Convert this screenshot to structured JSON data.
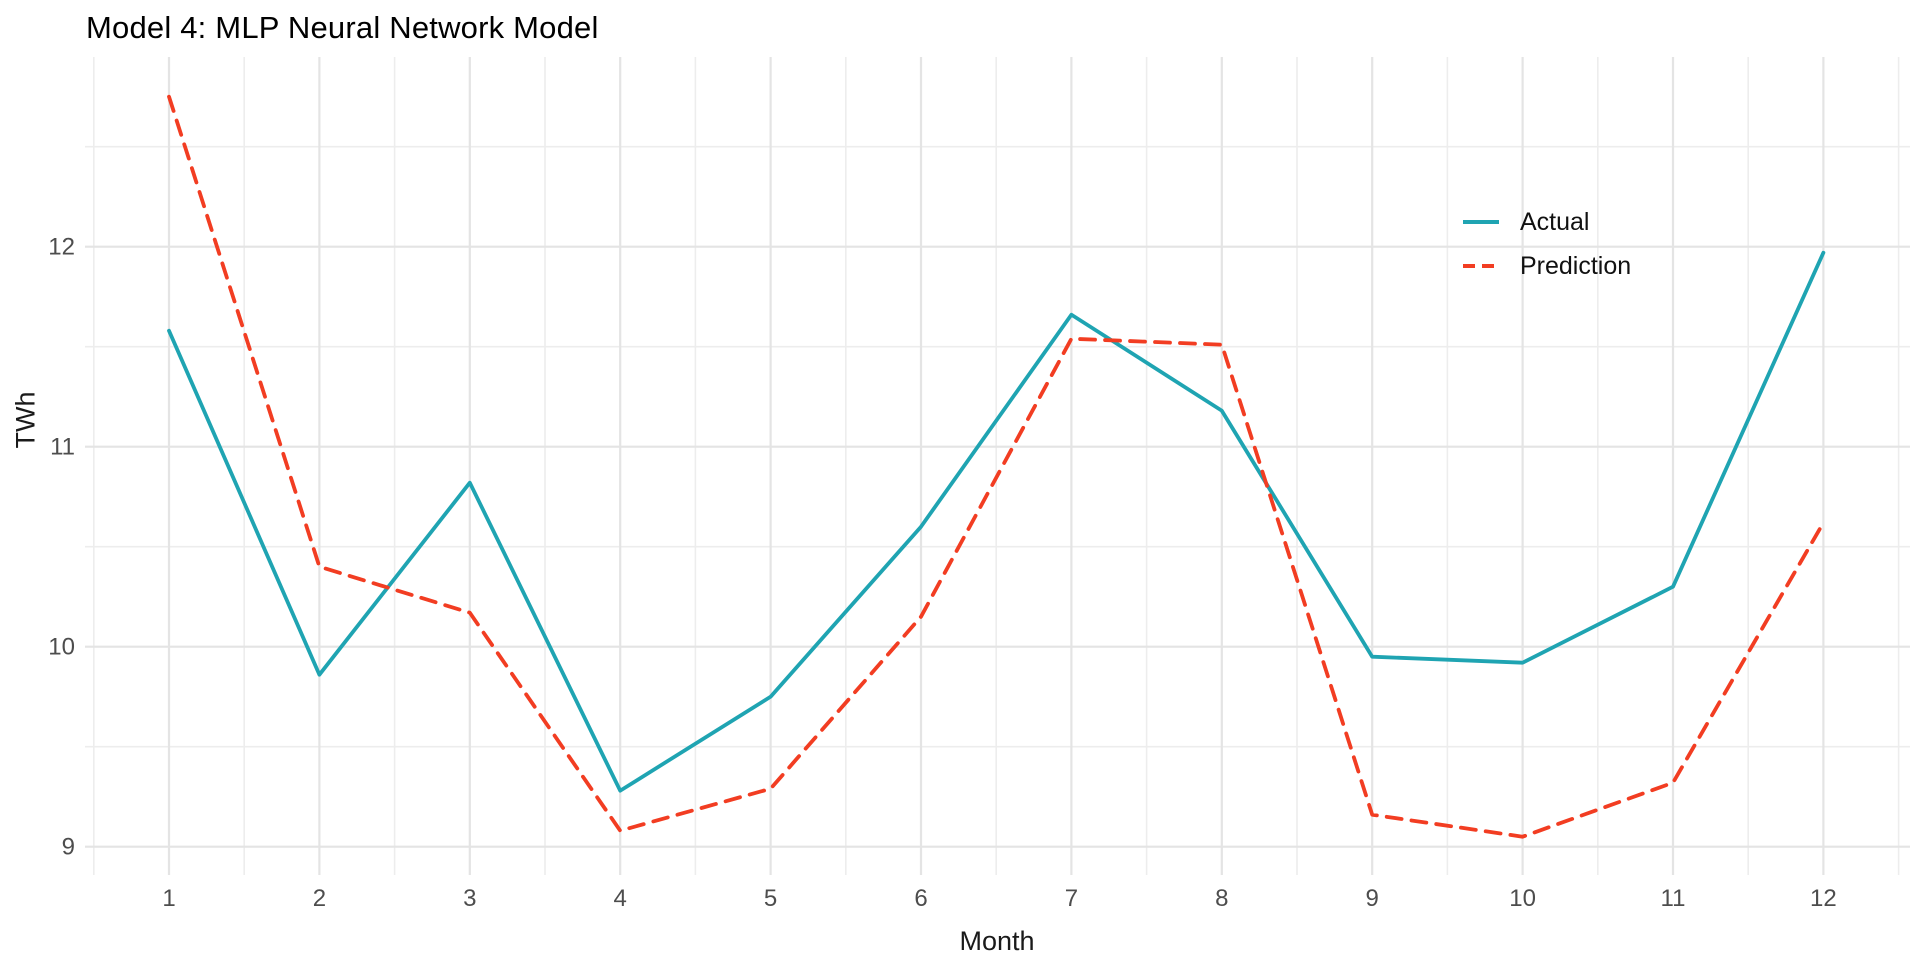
{
  "title": "Model 4: MLP Neural Network Model",
  "x_axis": {
    "label": "Month",
    "tick_labels": [
      "1",
      "2",
      "3",
      "4",
      "5",
      "6",
      "7",
      "8",
      "9",
      "10",
      "11",
      "12"
    ]
  },
  "y_axis": {
    "label": "TWh",
    "tick_labels": [
      "9",
      "10",
      "11",
      "12"
    ]
  },
  "legend": {
    "items": [
      {
        "label": "Actual",
        "color": "#1FA4B2",
        "dash": "solid"
      },
      {
        "label": "Prediction",
        "color": "#F23D22",
        "dash": "dashed"
      }
    ]
  },
  "colors": {
    "actual": "#1FA4B2",
    "prediction": "#F23D22",
    "grid_major": "#E4E4E4",
    "grid_minor": "#EDEDED",
    "tick_label": "#4D4D4D",
    "background": "#FFFFFF"
  },
  "chart_data": {
    "type": "line",
    "title": "Model 4: MLP Neural Network Model",
    "xlabel": "Month",
    "ylabel": "TWh",
    "x": [
      1,
      2,
      3,
      4,
      5,
      6,
      7,
      8,
      9,
      10,
      11,
      12
    ],
    "series": [
      {
        "name": "Actual",
        "style": "solid",
        "color": "#1FA4B2",
        "values": [
          11.58,
          9.86,
          10.82,
          9.28,
          9.75,
          10.6,
          11.66,
          11.18,
          9.95,
          9.92,
          10.3,
          11.97
        ]
      },
      {
        "name": "Prediction",
        "style": "dashed",
        "color": "#F23D22",
        "values": [
          12.75,
          10.4,
          10.17,
          9.08,
          9.29,
          10.15,
          11.54,
          11.51,
          9.16,
          9.05,
          9.32,
          10.62
        ]
      }
    ],
    "x_ticks": [
      1,
      2,
      3,
      4,
      5,
      6,
      7,
      8,
      9,
      10,
      11,
      12
    ],
    "y_ticks": [
      9,
      10,
      11,
      12
    ],
    "y_minor_ticks": [
      9.5,
      10.5,
      11.5,
      12.5
    ],
    "xlim": [
      0.45,
      12.55
    ],
    "ylim": [
      8.86,
      12.95
    ],
    "grid": "major+minor",
    "legend_position": "inside-top-right"
  }
}
